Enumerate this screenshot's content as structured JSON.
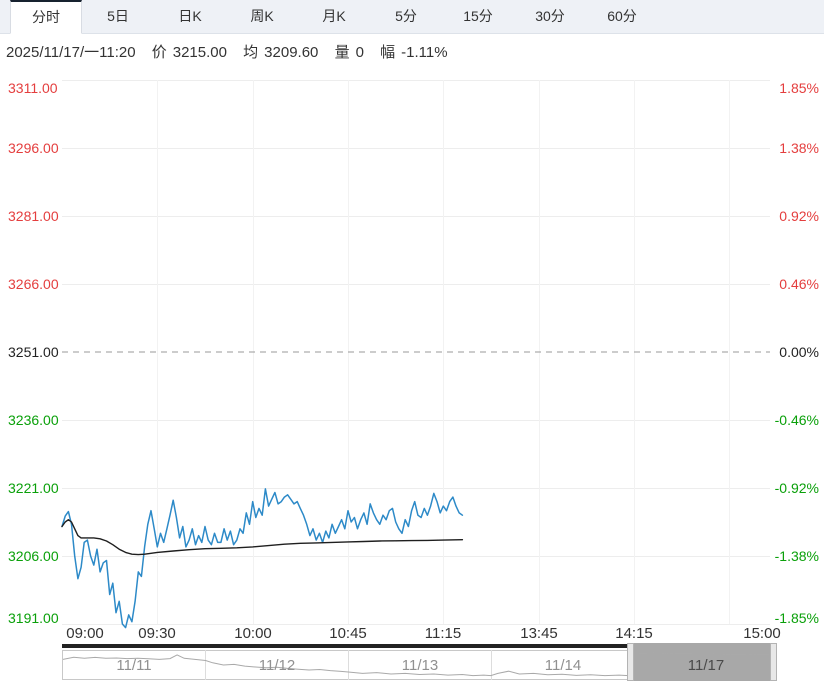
{
  "tabs": {
    "items": [
      "分时",
      "5日",
      "日K",
      "周K",
      "月K",
      "5分",
      "15分",
      "30分",
      "60分"
    ],
    "active_index": 0
  },
  "info": {
    "datetime": "2025/11/17/一11:20",
    "price_label": "价",
    "price_value": "3215.00",
    "avg_label": "均",
    "avg_value": "3209.60",
    "volume_label": "量",
    "volume_value": "0",
    "change_label": "幅",
    "change_value": "-1.11%"
  },
  "colors": {
    "up": "#e43e3e",
    "down": "#0aa00a",
    "neutral": "#222222",
    "price_line": "#2d8ac8",
    "avg_line": "#1f1f1f",
    "grid": "#ededed",
    "baseline_dash": "#9a9a9a",
    "selection_fill": "#a8a8a8",
    "spark_line": "#a9a9a9",
    "dark_bar": "#222222"
  },
  "chart_data": {
    "type": "line",
    "title": "分时 intraday price chart with average line",
    "x_unit": "trading minutes from 09:00 (sessions 09:00-10:15, 10:30-11:30, 13:30-15:00 = 225 min)",
    "x_ticks": [
      "09:00",
      "09:30",
      "10:00",
      "10:45",
      "11:15",
      "13:45",
      "14:15",
      "15:00"
    ],
    "x_tick_minutes": [
      0,
      30,
      60,
      90,
      120,
      150,
      180,
      225
    ],
    "y_ticks_price": [
      "3311.00",
      "3296.00",
      "3281.00",
      "3266.00",
      "3251.00",
      "3236.00",
      "3221.00",
      "3206.00",
      "3191.00"
    ],
    "y_ticks_percent": [
      "1.85%",
      "1.38%",
      "0.92%",
      "0.46%",
      "0.00%",
      "-0.46%",
      "-0.92%",
      "-1.38%",
      "-1.85%"
    ],
    "ylim": [
      3191,
      3311
    ],
    "baseline_price": 3251,
    "grid": true,
    "series": [
      {
        "name": "price",
        "points": [
          [
            0,
            3212.5
          ],
          [
            1,
            3214.8
          ],
          [
            2,
            3215.8
          ],
          [
            3,
            3213
          ],
          [
            4,
            3206
          ],
          [
            5,
            3201
          ],
          [
            6,
            3203.5
          ],
          [
            7,
            3209
          ],
          [
            8,
            3209.5
          ],
          [
            9,
            3206
          ],
          [
            10,
            3204
          ],
          [
            11,
            3207.5
          ],
          [
            12,
            3202.5
          ],
          [
            13,
            3204.5
          ],
          [
            14,
            3205
          ],
          [
            15,
            3197.5
          ],
          [
            16,
            3200
          ],
          [
            17,
            3193.5
          ],
          [
            18,
            3196
          ],
          [
            19,
            3191
          ],
          [
            20,
            3190.2
          ],
          [
            21,
            3193
          ],
          [
            22,
            3191.5
          ],
          [
            23,
            3196
          ],
          [
            24,
            3202.5
          ],
          [
            25,
            3201.5
          ],
          [
            26,
            3208
          ],
          [
            27,
            3213
          ],
          [
            28,
            3216
          ],
          [
            29,
            3212
          ],
          [
            30,
            3208
          ],
          [
            31,
            3211
          ],
          [
            32,
            3209
          ],
          [
            33,
            3212
          ],
          [
            34,
            3215
          ],
          [
            35,
            3218.3
          ],
          [
            36,
            3214.5
          ],
          [
            37,
            3210
          ],
          [
            38,
            3212.5
          ],
          [
            39,
            3208
          ],
          [
            40,
            3209.5
          ],
          [
            41,
            3212
          ],
          [
            42,
            3208.5
          ],
          [
            43,
            3210.5
          ],
          [
            44,
            3209
          ],
          [
            45,
            3212.5
          ],
          [
            46,
            3209.5
          ],
          [
            47,
            3208.5
          ],
          [
            48,
            3211
          ],
          [
            49,
            3209
          ],
          [
            50,
            3209
          ],
          [
            51,
            3212
          ],
          [
            52,
            3209.5
          ],
          [
            53,
            3211.5
          ],
          [
            54,
            3208.5
          ],
          [
            55,
            3209.5
          ],
          [
            56,
            3212
          ],
          [
            57,
            3211
          ],
          [
            58,
            3215.5
          ],
          [
            59,
            3213
          ],
          [
            60,
            3218
          ],
          [
            61,
            3214.5
          ],
          [
            62,
            3216.5
          ],
          [
            63,
            3215
          ],
          [
            64,
            3220.8
          ],
          [
            65,
            3217
          ],
          [
            66,
            3218.5
          ],
          [
            67,
            3220
          ],
          [
            68,
            3217.5
          ],
          [
            69,
            3218
          ],
          [
            70,
            3219
          ],
          [
            71,
            3219.5
          ],
          [
            72,
            3218.5
          ],
          [
            73,
            3217.5
          ],
          [
            74,
            3218
          ],
          [
            75,
            3216.5
          ],
          [
            76,
            3215
          ],
          [
            77,
            3213
          ],
          [
            78,
            3210.5
          ],
          [
            79,
            3212
          ],
          [
            80,
            3209.5
          ],
          [
            81,
            3211
          ],
          [
            82,
            3209
          ],
          [
            83,
            3211.5
          ],
          [
            84,
            3210
          ],
          [
            85,
            3213
          ],
          [
            86,
            3211
          ],
          [
            87,
            3212.5
          ],
          [
            88,
            3214
          ],
          [
            89,
            3212
          ],
          [
            90,
            3216
          ],
          [
            91,
            3213.5
          ],
          [
            92,
            3214.5
          ],
          [
            93,
            3212
          ],
          [
            94,
            3214
          ],
          [
            95,
            3215.5
          ],
          [
            96,
            3213
          ],
          [
            97,
            3217.5
          ],
          [
            98,
            3215.5
          ],
          [
            99,
            3214
          ],
          [
            100,
            3213
          ],
          [
            101,
            3215
          ],
          [
            102,
            3214
          ],
          [
            103,
            3216
          ],
          [
            104,
            3216.5
          ],
          [
            105,
            3213.5
          ],
          [
            106,
            3212
          ],
          [
            107,
            3211
          ],
          [
            108,
            3214
          ],
          [
            109,
            3212.5
          ],
          [
            110,
            3216
          ],
          [
            111,
            3218
          ],
          [
            112,
            3215
          ],
          [
            113,
            3214.5
          ],
          [
            114,
            3216.5
          ],
          [
            115,
            3215
          ],
          [
            116,
            3217
          ],
          [
            117,
            3219.8
          ],
          [
            118,
            3218
          ],
          [
            119,
            3215.5
          ],
          [
            120,
            3217
          ],
          [
            121,
            3216
          ],
          [
            122,
            3218
          ],
          [
            123,
            3219
          ],
          [
            124,
            3217
          ],
          [
            125,
            3215.5
          ],
          [
            126,
            3215
          ]
        ]
      },
      {
        "name": "average",
        "points": [
          [
            0,
            3212.5
          ],
          [
            1,
            3213.5
          ],
          [
            2,
            3214
          ],
          [
            3,
            3213.5
          ],
          [
            4,
            3212
          ],
          [
            5,
            3210.5
          ],
          [
            6,
            3210
          ],
          [
            8,
            3210
          ],
          [
            10,
            3210
          ],
          [
            12,
            3209.8
          ],
          [
            14,
            3209.3
          ],
          [
            16,
            3208.5
          ],
          [
            18,
            3207.5
          ],
          [
            20,
            3206.8
          ],
          [
            22,
            3206.4
          ],
          [
            24,
            3206.3
          ],
          [
            26,
            3206.4
          ],
          [
            28,
            3206.6
          ],
          [
            30,
            3206.8
          ],
          [
            35,
            3207.1
          ],
          [
            40,
            3207.4
          ],
          [
            45,
            3207.6
          ],
          [
            50,
            3207.7
          ],
          [
            55,
            3207.8
          ],
          [
            60,
            3208
          ],
          [
            65,
            3208.3
          ],
          [
            70,
            3208.6
          ],
          [
            75,
            3208.8
          ],
          [
            80,
            3208.9
          ],
          [
            85,
            3209
          ],
          [
            90,
            3209.1
          ],
          [
            95,
            3209.2
          ],
          [
            100,
            3209.3
          ],
          [
            105,
            3209.35
          ],
          [
            110,
            3209.4
          ],
          [
            115,
            3209.45
          ],
          [
            120,
            3209.5
          ],
          [
            126,
            3209.6
          ]
        ]
      }
    ]
  },
  "navigator": {
    "dates": [
      "11/11",
      "11/12",
      "11/13",
      "11/14",
      "11/17"
    ],
    "selected_index": 4,
    "spark_segments": [
      [
        [
          0,
          0.3
        ],
        [
          0.015,
          0.22
        ],
        [
          0.03,
          0.26
        ],
        [
          0.045,
          0.23
        ],
        [
          0.06,
          0.26
        ],
        [
          0.075,
          0.25
        ],
        [
          0.09,
          0.27
        ],
        [
          0.105,
          0.26
        ],
        [
          0.12,
          0.28
        ],
        [
          0.135,
          0.3
        ],
        [
          0.15,
          0.27
        ],
        [
          0.16,
          0.14
        ],
        [
          0.17,
          0.26
        ],
        [
          0.185,
          0.3
        ],
        [
          0.2,
          0.34
        ],
        [
          0.21,
          0.42
        ],
        [
          0.225,
          0.5
        ],
        [
          0.24,
          0.48
        ],
        [
          0.255,
          0.54
        ],
        [
          0.27,
          0.57
        ],
        [
          0.285,
          0.6
        ],
        [
          0.3,
          0.58
        ],
        [
          0.315,
          0.62
        ],
        [
          0.33,
          0.65
        ],
        [
          0.345,
          0.68
        ],
        [
          0.36,
          0.66
        ],
        [
          0.375,
          0.7
        ],
        [
          0.39,
          0.73
        ],
        [
          0.4,
          0.75
        ],
        [
          0.42,
          0.8
        ],
        [
          0.44,
          0.77
        ],
        [
          0.46,
          0.82
        ],
        [
          0.48,
          0.8
        ],
        [
          0.5,
          0.84
        ],
        [
          0.52,
          0.82
        ],
        [
          0.54,
          0.86
        ],
        [
          0.56,
          0.84
        ],
        [
          0.575,
          0.88
        ],
        [
          0.59,
          0.86
        ],
        [
          0.6,
          0.88
        ],
        [
          0.61,
          0.8
        ],
        [
          0.625,
          0.72
        ],
        [
          0.64,
          0.82
        ],
        [
          0.66,
          0.8
        ],
        [
          0.68,
          0.85
        ],
        [
          0.7,
          0.83
        ],
        [
          0.72,
          0.87
        ],
        [
          0.74,
          0.85
        ],
        [
          0.76,
          0.88
        ],
        [
          0.78,
          0.86
        ],
        [
          0.793,
          0.88
        ]
      ],
      [
        [
          0.807,
          0.1
        ],
        [
          0.83,
          0.06
        ],
        [
          0.85,
          0.1
        ],
        [
          0.87,
          0.08
        ],
        [
          0.89,
          0.11
        ],
        [
          0.91,
          0.1
        ],
        [
          0.93,
          0.12
        ],
        [
          0.95,
          0.11
        ],
        [
          0.97,
          0.13
        ],
        [
          1.0,
          0.12
        ]
      ]
    ]
  }
}
